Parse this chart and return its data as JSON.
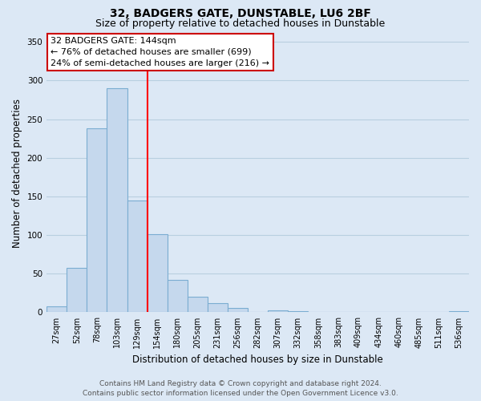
{
  "title": "32, BADGERS GATE, DUNSTABLE, LU6 2BF",
  "subtitle": "Size of property relative to detached houses in Dunstable",
  "xlabel": "Distribution of detached houses by size in Dunstable",
  "ylabel": "Number of detached properties",
  "bin_labels": [
    "27sqm",
    "52sqm",
    "78sqm",
    "103sqm",
    "129sqm",
    "154sqm",
    "180sqm",
    "205sqm",
    "231sqm",
    "256sqm",
    "282sqm",
    "307sqm",
    "332sqm",
    "358sqm",
    "383sqm",
    "409sqm",
    "434sqm",
    "460sqm",
    "485sqm",
    "511sqm",
    "536sqm"
  ],
  "bar_values": [
    8,
    57,
    238,
    290,
    145,
    101,
    42,
    20,
    12,
    6,
    0,
    3,
    1,
    0,
    0,
    0,
    0,
    0,
    0,
    0,
    2
  ],
  "bar_color": "#c5d8ed",
  "bar_edge_color": "#7badd1",
  "vline_color": "red",
  "annotation_title": "32 BADGERS GATE: 144sqm",
  "annotation_line1": "← 76% of detached houses are smaller (699)",
  "annotation_line2": "24% of semi-detached houses are larger (216) →",
  "annotation_box_color": "white",
  "annotation_box_edge": "#cc0000",
  "ylim": [
    0,
    360
  ],
  "yticks": [
    0,
    50,
    100,
    150,
    200,
    250,
    300,
    350
  ],
  "footer_line1": "Contains HM Land Registry data © Crown copyright and database right 2024.",
  "footer_line2": "Contains public sector information licensed under the Open Government Licence v3.0.",
  "bg_color": "#dce8f5",
  "plot_bg_color": "#dce8f5",
  "grid_color": "#b8cfe0",
  "title_fontsize": 10,
  "subtitle_fontsize": 9,
  "axis_label_fontsize": 8.5,
  "tick_fontsize": 7,
  "annotation_fontsize": 8,
  "footer_fontsize": 6.5
}
